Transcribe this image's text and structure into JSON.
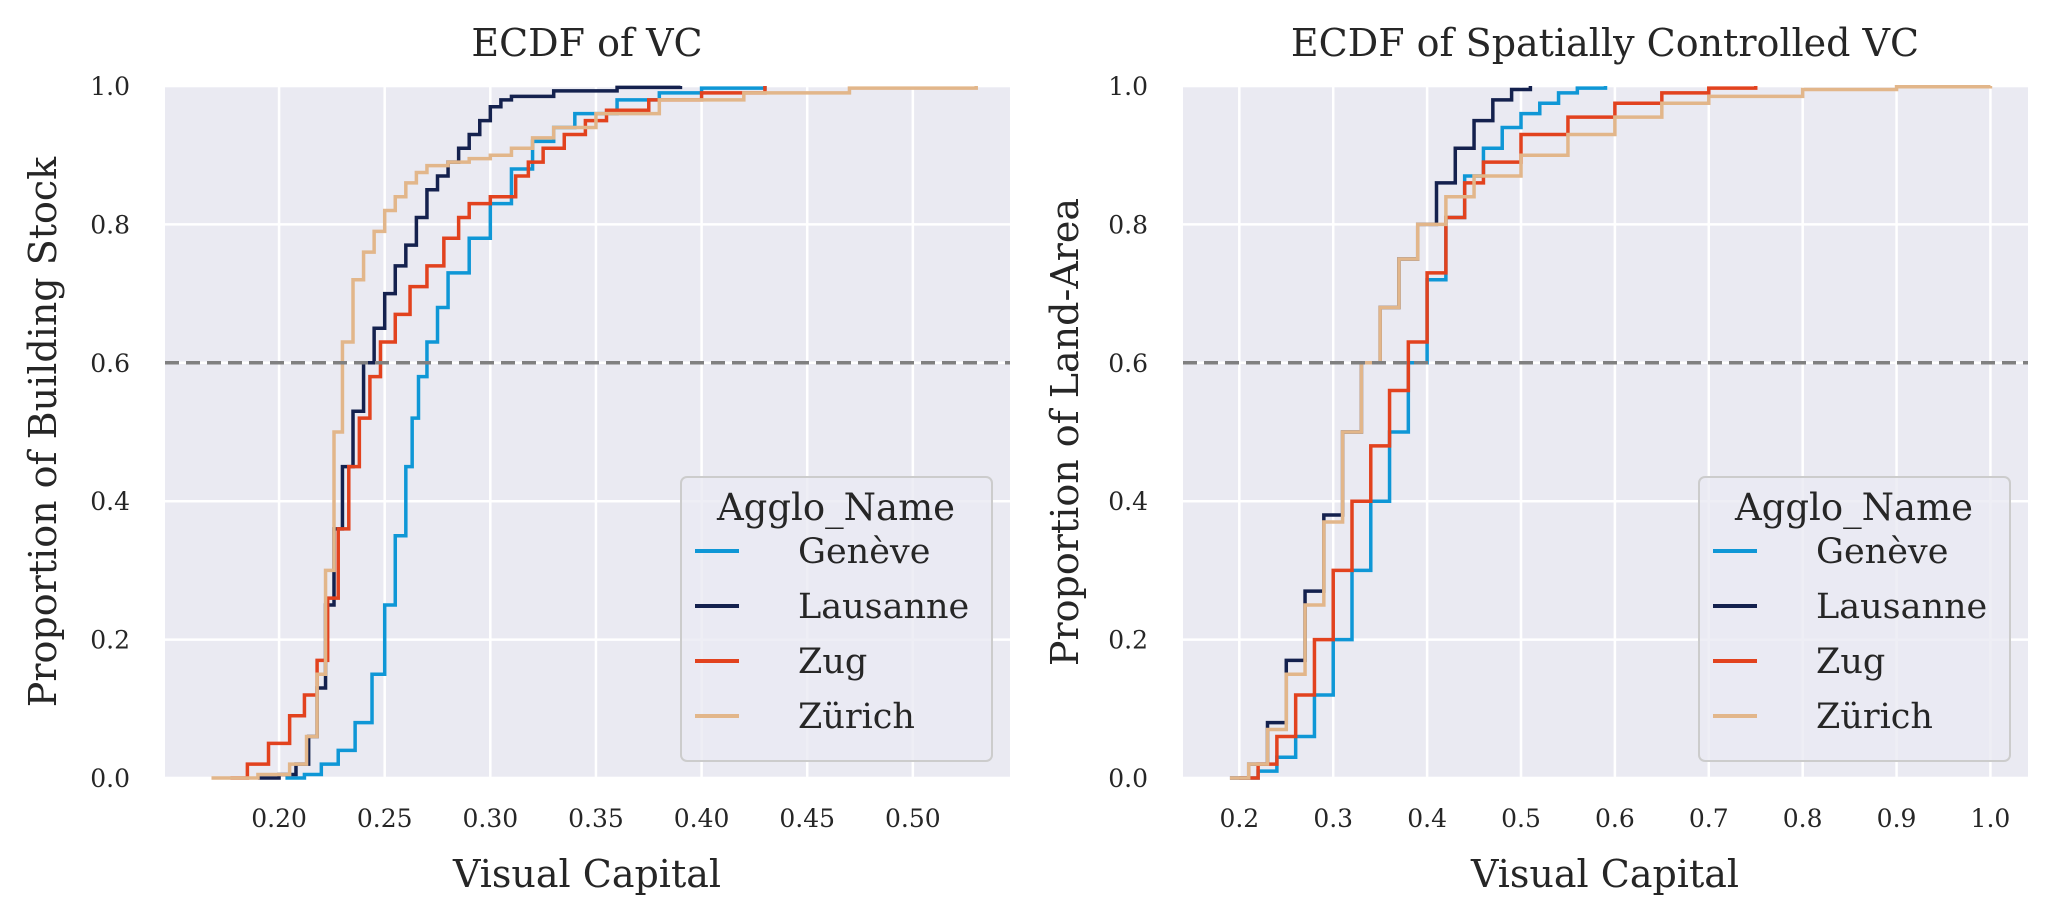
{
  "chart_data": [
    {
      "type": "line",
      "subtype": "ecdf",
      "title": "ECDF of VC",
      "xlabel": "Visual Capital",
      "ylabel": "Proportion of Building Stock",
      "xlim": [
        0.146,
        0.546
      ],
      "ylim": [
        0,
        1
      ],
      "xticks": [
        0.2,
        0.25,
        0.3,
        0.35,
        0.4,
        0.45,
        0.5
      ],
      "xtick_labels": [
        "0.20",
        "0.25",
        "0.30",
        "0.35",
        "0.40",
        "0.45",
        "0.50"
      ],
      "yticks": [
        0,
        0.2,
        0.4,
        0.6,
        0.8,
        1.0
      ],
      "ytick_labels": [
        "0.0",
        "0.2",
        "0.4",
        "0.6",
        "0.8",
        "1.0"
      ],
      "reference_line": {
        "y": 0.6,
        "style": "dashed",
        "color": "#808080"
      },
      "grid": true,
      "legend": {
        "title": "Agglo_Name",
        "placement": "lower-right"
      },
      "series": [
        {
          "name": "Genève",
          "color": "#0f97d6",
          "x": [
            0.203,
            0.212,
            0.22,
            0.228,
            0.236,
            0.244,
            0.25,
            0.255,
            0.26,
            0.263,
            0.266,
            0.27,
            0.275,
            0.28,
            0.29,
            0.3,
            0.31,
            0.32,
            0.33,
            0.34,
            0.36,
            0.38,
            0.4,
            0.43
          ],
          "y": [
            0.0,
            0.005,
            0.02,
            0.04,
            0.08,
            0.15,
            0.25,
            0.35,
            0.45,
            0.52,
            0.58,
            0.63,
            0.68,
            0.73,
            0.78,
            0.83,
            0.88,
            0.92,
            0.94,
            0.96,
            0.98,
            0.99,
            0.997,
            1.0
          ]
        },
        {
          "name": "Lausanne",
          "color": "#14214e",
          "x": [
            0.19,
            0.2,
            0.208,
            0.214,
            0.218,
            0.222,
            0.226,
            0.23,
            0.235,
            0.24,
            0.245,
            0.25,
            0.255,
            0.26,
            0.265,
            0.27,
            0.275,
            0.28,
            0.285,
            0.29,
            0.295,
            0.3,
            0.305,
            0.31,
            0.33,
            0.36,
            0.39
          ],
          "y": [
            0.0,
            0.005,
            0.02,
            0.06,
            0.13,
            0.25,
            0.36,
            0.45,
            0.53,
            0.6,
            0.65,
            0.7,
            0.74,
            0.77,
            0.81,
            0.85,
            0.87,
            0.89,
            0.91,
            0.93,
            0.95,
            0.97,
            0.98,
            0.985,
            0.993,
            0.998,
            1.0
          ]
        },
        {
          "name": "Zug",
          "color": "#e2421e",
          "x": [
            0.177,
            0.185,
            0.195,
            0.205,
            0.212,
            0.218,
            0.223,
            0.228,
            0.233,
            0.238,
            0.243,
            0.248,
            0.255,
            0.262,
            0.27,
            0.278,
            0.285,
            0.29,
            0.3,
            0.308,
            0.312,
            0.318,
            0.325,
            0.335,
            0.345,
            0.355,
            0.375,
            0.4,
            0.43
          ],
          "y": [
            0.0,
            0.02,
            0.05,
            0.09,
            0.12,
            0.17,
            0.26,
            0.36,
            0.45,
            0.52,
            0.58,
            0.63,
            0.67,
            0.71,
            0.74,
            0.78,
            0.81,
            0.83,
            0.84,
            0.84,
            0.87,
            0.89,
            0.91,
            0.93,
            0.95,
            0.965,
            0.98,
            0.99,
            1.0
          ]
        },
        {
          "name": "Zürich",
          "color": "#e2b68a",
          "x": [
            0.168,
            0.19,
            0.205,
            0.213,
            0.218,
            0.222,
            0.226,
            0.23,
            0.235,
            0.24,
            0.245,
            0.25,
            0.255,
            0.26,
            0.265,
            0.27,
            0.28,
            0.29,
            0.3,
            0.31,
            0.32,
            0.33,
            0.35,
            0.38,
            0.42,
            0.47,
            0.53
          ],
          "y": [
            0.0,
            0.005,
            0.02,
            0.06,
            0.15,
            0.3,
            0.5,
            0.63,
            0.72,
            0.76,
            0.79,
            0.82,
            0.84,
            0.86,
            0.875,
            0.885,
            0.89,
            0.895,
            0.9,
            0.91,
            0.925,
            0.94,
            0.96,
            0.98,
            0.99,
            0.997,
            1.0
          ]
        }
      ]
    },
    {
      "type": "line",
      "subtype": "ecdf",
      "title": "ECDF of Spatially Controlled VC",
      "xlabel": "Visual Capital",
      "ylabel": "Proportion of Land-Area",
      "xlim": [
        0.14,
        1.04
      ],
      "ylim": [
        0,
        1
      ],
      "xticks": [
        0.2,
        0.3,
        0.4,
        0.5,
        0.6,
        0.7,
        0.8,
        0.9,
        1.0
      ],
      "xtick_labels": [
        "0.2",
        "0.3",
        "0.4",
        "0.5",
        "0.6",
        "0.7",
        "0.8",
        "0.9",
        "1.0"
      ],
      "yticks": [
        0,
        0.2,
        0.4,
        0.6,
        0.8,
        1.0
      ],
      "ytick_labels": [
        "0.0",
        "0.2",
        "0.4",
        "0.6",
        "0.8",
        "1.0"
      ],
      "reference_line": {
        "y": 0.6,
        "style": "dashed",
        "color": "#808080"
      },
      "grid": true,
      "legend": {
        "title": "Agglo_Name",
        "placement": "lower-right"
      },
      "series": [
        {
          "name": "Genève",
          "color": "#0f97d6",
          "x": [
            0.2,
            0.22,
            0.24,
            0.26,
            0.28,
            0.3,
            0.32,
            0.34,
            0.36,
            0.38,
            0.4,
            0.42,
            0.44,
            0.46,
            0.48,
            0.5,
            0.52,
            0.54,
            0.56,
            0.59
          ],
          "y": [
            0.0,
            0.01,
            0.03,
            0.06,
            0.12,
            0.2,
            0.3,
            0.4,
            0.5,
            0.6,
            0.72,
            0.81,
            0.87,
            0.91,
            0.94,
            0.96,
            0.975,
            0.99,
            0.997,
            1.0
          ]
        },
        {
          "name": "Lausanne",
          "color": "#14214e",
          "x": [
            0.19,
            0.21,
            0.23,
            0.25,
            0.27,
            0.29,
            0.31,
            0.33,
            0.35,
            0.37,
            0.39,
            0.41,
            0.43,
            0.45,
            0.47,
            0.49,
            0.51
          ],
          "y": [
            0.0,
            0.02,
            0.08,
            0.17,
            0.27,
            0.38,
            0.5,
            0.6,
            0.68,
            0.75,
            0.8,
            0.86,
            0.91,
            0.95,
            0.98,
            0.995,
            1.0
          ]
        },
        {
          "name": "Zug",
          "color": "#e2421e",
          "x": [
            0.2,
            0.22,
            0.24,
            0.26,
            0.28,
            0.3,
            0.32,
            0.34,
            0.36,
            0.38,
            0.4,
            0.42,
            0.44,
            0.46,
            0.5,
            0.55,
            0.6,
            0.65,
            0.7,
            0.75
          ],
          "y": [
            0.0,
            0.02,
            0.06,
            0.12,
            0.2,
            0.3,
            0.4,
            0.48,
            0.56,
            0.63,
            0.73,
            0.81,
            0.86,
            0.89,
            0.93,
            0.955,
            0.975,
            0.99,
            0.997,
            1.0
          ]
        },
        {
          "name": "Zürich",
          "color": "#e2b68a",
          "x": [
            0.19,
            0.21,
            0.23,
            0.25,
            0.27,
            0.29,
            0.31,
            0.33,
            0.35,
            0.37,
            0.39,
            0.42,
            0.45,
            0.5,
            0.55,
            0.6,
            0.65,
            0.7,
            0.8,
            0.9,
            1.0
          ],
          "y": [
            0.0,
            0.02,
            0.07,
            0.15,
            0.25,
            0.37,
            0.5,
            0.6,
            0.68,
            0.75,
            0.8,
            0.84,
            0.87,
            0.9,
            0.93,
            0.955,
            0.975,
            0.985,
            0.995,
            0.999,
            1.0
          ]
        }
      ]
    }
  ]
}
